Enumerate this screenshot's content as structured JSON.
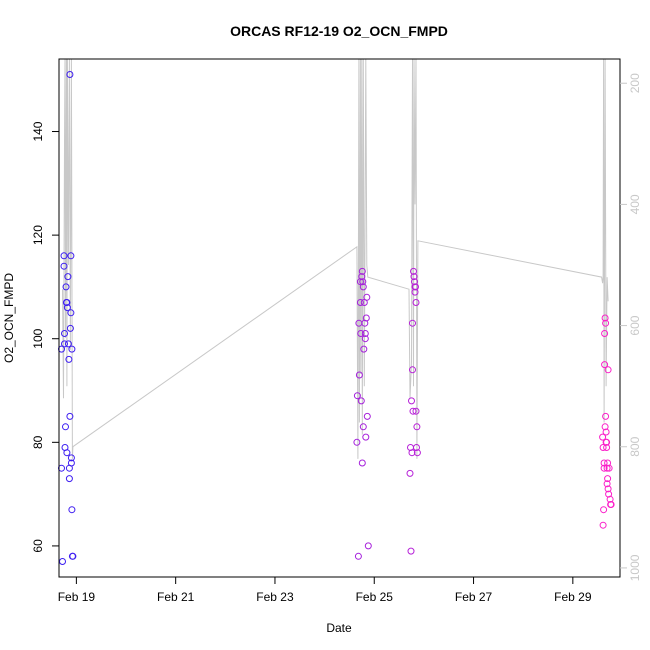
{
  "chart_data": {
    "type": "scatter",
    "title": "ORCAS RF12-19 O2_OCN_FMPD",
    "xlabel": "Date",
    "ylabel": "O2_OCN_FMPD",
    "x_ticks": [
      "Feb 19",
      "Feb 21",
      "Feb 23",
      "Feb 25",
      "Feb 27",
      "Feb 29"
    ],
    "x_tick_days": [
      19,
      21,
      23,
      25,
      27,
      29
    ],
    "xlim_days": [
      18.65,
      29.95
    ],
    "ylim": [
      54,
      154
    ],
    "y_ticks": [
      60,
      80,
      100,
      120,
      140
    ],
    "y2_ticks": [
      200,
      400,
      600,
      800,
      1000
    ],
    "y2lim": [
      1015,
      160
    ],
    "y2_color": "#c8c8c8",
    "grid": false,
    "point_color_start": "#3b1ff2",
    "point_color_end": "#ff20c8",
    "series": [
      {
        "points": [
          [
            18.7,
            98
          ],
          [
            18.7,
            75
          ],
          [
            18.72,
            57
          ],
          [
            18.75,
            116
          ],
          [
            18.75,
            114
          ],
          [
            18.76,
            99
          ],
          [
            18.76,
            101
          ],
          [
            18.77,
            79
          ],
          [
            18.78,
            83
          ],
          [
            18.79,
            110
          ],
          [
            18.8,
            107
          ],
          [
            18.81,
            78
          ],
          [
            18.81,
            107
          ],
          [
            18.82,
            106
          ],
          [
            18.83,
            112
          ],
          [
            18.84,
            99
          ],
          [
            18.85,
            96
          ],
          [
            18.86,
            75
          ],
          [
            18.86,
            73
          ],
          [
            18.87,
            151
          ],
          [
            18.87,
            85
          ],
          [
            18.88,
            102
          ],
          [
            18.89,
            105
          ],
          [
            18.89,
            116
          ],
          [
            18.9,
            76
          ],
          [
            18.9,
            77
          ],
          [
            18.91,
            67
          ],
          [
            18.91,
            98
          ],
          [
            18.92,
            58
          ],
          [
            18.93,
            58
          ],
          [
            24.65,
            80
          ],
          [
            24.66,
            89
          ],
          [
            24.68,
            58
          ],
          [
            24.69,
            103
          ],
          [
            24.7,
            93
          ],
          [
            24.72,
            107
          ],
          [
            24.72,
            111
          ],
          [
            24.73,
            101
          ],
          [
            24.74,
            88
          ],
          [
            24.75,
            112
          ],
          [
            24.76,
            113
          ],
          [
            24.76,
            76
          ],
          [
            24.77,
            111
          ],
          [
            24.78,
            83
          ],
          [
            24.78,
            110
          ],
          [
            24.79,
            98
          ],
          [
            24.8,
            107
          ],
          [
            24.81,
            103
          ],
          [
            24.82,
            101
          ],
          [
            24.82,
            100
          ],
          [
            24.83,
            81
          ],
          [
            24.84,
            104
          ],
          [
            24.85,
            108
          ],
          [
            24.86,
            85
          ],
          [
            24.88,
            60
          ],
          [
            25.72,
            74
          ],
          [
            25.73,
            79
          ],
          [
            25.74,
            59
          ],
          [
            25.75,
            88
          ],
          [
            25.76,
            78
          ],
          [
            25.77,
            103
          ],
          [
            25.77,
            94
          ],
          [
            25.78,
            86
          ],
          [
            25.79,
            113
          ],
          [
            25.8,
            112
          ],
          [
            25.81,
            111
          ],
          [
            25.82,
            109
          ],
          [
            25.82,
            110
          ],
          [
            25.83,
            110
          ],
          [
            25.84,
            107
          ],
          [
            25.84,
            86
          ],
          [
            25.85,
            79
          ],
          [
            25.86,
            83
          ],
          [
            25.87,
            78
          ],
          [
            29.6,
            81
          ],
          [
            29.61,
            79
          ],
          [
            29.61,
            64
          ],
          [
            29.62,
            67
          ],
          [
            29.63,
            75
          ],
          [
            29.63,
            76
          ],
          [
            29.64,
            101
          ],
          [
            29.64,
            95
          ],
          [
            29.65,
            104
          ],
          [
            29.65,
            83
          ],
          [
            29.66,
            103
          ],
          [
            29.66,
            85
          ],
          [
            29.67,
            80
          ],
          [
            29.67,
            82
          ],
          [
            29.68,
            80
          ],
          [
            29.68,
            79
          ],
          [
            29.69,
            72
          ],
          [
            29.69,
            75
          ],
          [
            29.7,
            76
          ],
          [
            29.7,
            73
          ],
          [
            29.71,
            94
          ],
          [
            29.71,
            71
          ],
          [
            29.72,
            70
          ],
          [
            29.73,
            75
          ],
          [
            29.75,
            69
          ],
          [
            29.76,
            68
          ],
          [
            29.77,
            68
          ]
        ]
      }
    ],
    "line_series": {
      "color": "#c8c8c8",
      "axis": "right",
      "points": [
        [
          18.72,
          540
        ],
        [
          18.74,
          720
        ],
        [
          18.76,
          300
        ],
        [
          18.77,
          60
        ],
        [
          18.78,
          620
        ],
        [
          18.8,
          100
        ],
        [
          18.81,
          700
        ],
        [
          18.82,
          60
        ],
        [
          18.84,
          500
        ],
        [
          18.86,
          80
        ],
        [
          18.88,
          640
        ],
        [
          18.9,
          60
        ],
        [
          18.92,
          820
        ],
        [
          18.93,
          800
        ],
        [
          24.65,
          470
        ],
        [
          24.67,
          820
        ],
        [
          24.69,
          60
        ],
        [
          24.7,
          760
        ],
        [
          24.72,
          80
        ],
        [
          24.73,
          680
        ],
        [
          24.75,
          60
        ],
        [
          24.76,
          780
        ],
        [
          24.78,
          100
        ],
        [
          24.8,
          700
        ],
        [
          24.83,
          60
        ],
        [
          24.85,
          500
        ],
        [
          24.87,
          520
        ],
        [
          25.7,
          540
        ],
        [
          25.72,
          720
        ],
        [
          25.75,
          660
        ],
        [
          25.77,
          60
        ],
        [
          25.79,
          700
        ],
        [
          25.8,
          100
        ],
        [
          25.82,
          400
        ],
        [
          25.84,
          120
        ],
        [
          25.86,
          820
        ],
        [
          25.88,
          460
        ],
        [
          29.58,
          520
        ],
        [
          29.6,
          530
        ],
        [
          29.61,
          520
        ],
        [
          29.62,
          60
        ],
        [
          29.63,
          760
        ],
        [
          29.65,
          60
        ],
        [
          29.67,
          700
        ],
        [
          29.69,
          520
        ],
        [
          29.71,
          560
        ]
      ]
    }
  }
}
